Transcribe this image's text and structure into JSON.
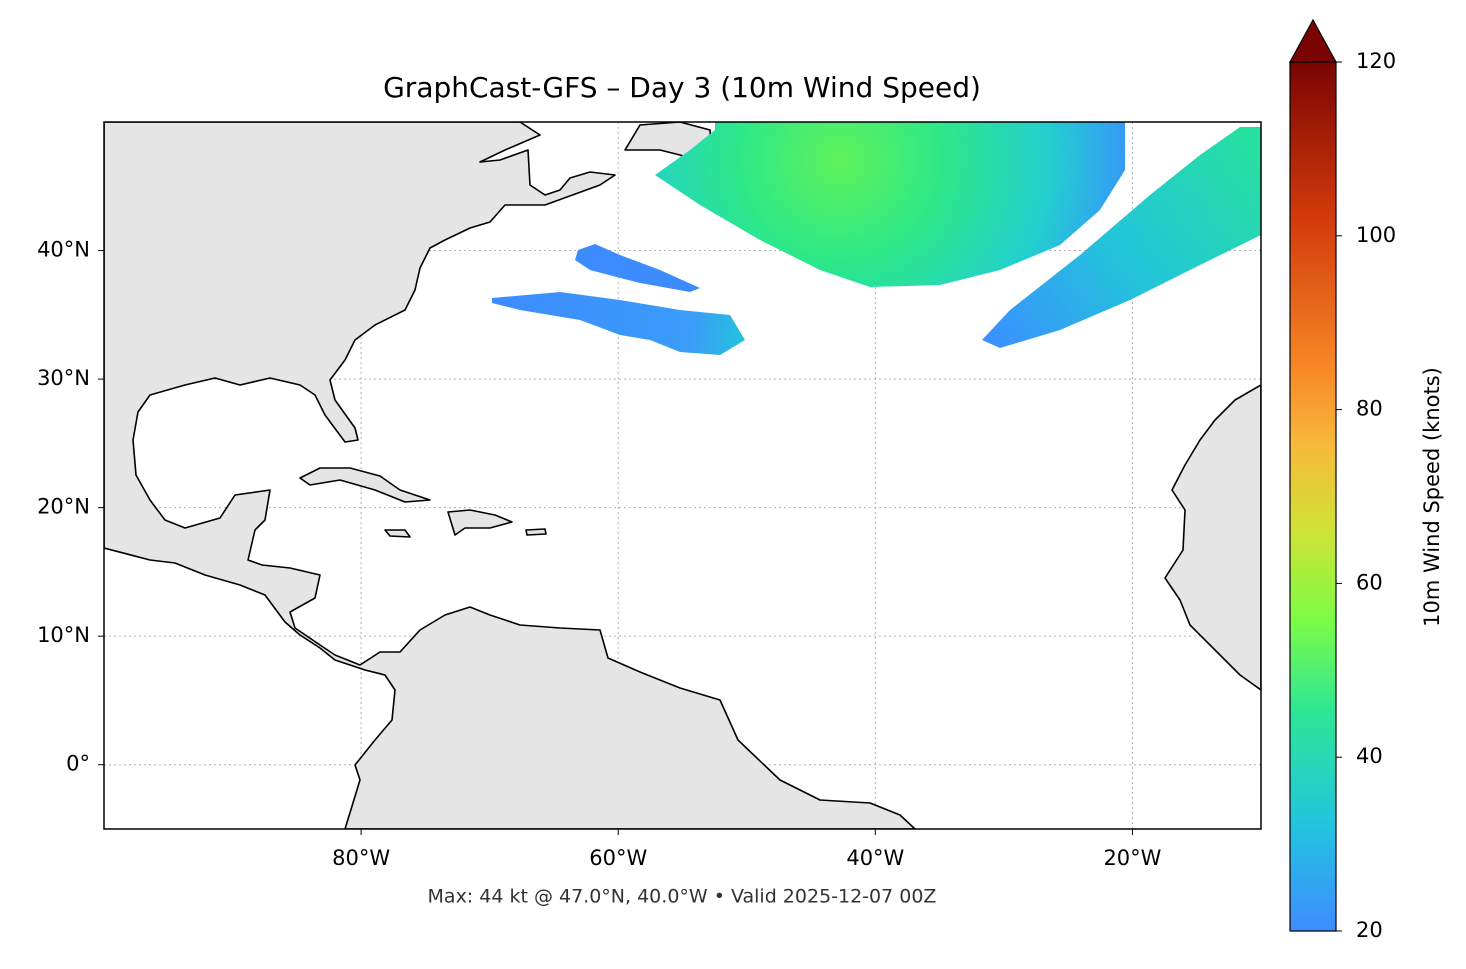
{
  "chart_data": {
    "type": "map",
    "title": "GraphCast-GFS – Day 3 (10m Wind Speed)",
    "footer": "Max: 44 kt @ 47.0°N, 40.0°W • Valid 2025-12-07 00Z",
    "xlim": [
      -100,
      -10
    ],
    "xticks": [
      {
        "value": -80,
        "label": "80°W"
      },
      {
        "value": -60,
        "label": "60°W"
      },
      {
        "value": -40,
        "label": "40°W"
      },
      {
        "value": -20,
        "label": "20°W"
      }
    ],
    "ylim": [
      -5,
      50
    ],
    "yticks": [
      {
        "value": 0,
        "label": "0°"
      },
      {
        "value": 10,
        "label": "10°N"
      },
      {
        "value": 20,
        "label": "20°N"
      },
      {
        "value": 30,
        "label": "30°N"
      },
      {
        "value": 40,
        "label": "40°N"
      }
    ],
    "grid": true,
    "colorbar": {
      "label": "10m Wind Speed (knots)",
      "lim": [
        20,
        120
      ],
      "ticks": [
        20,
        40,
        60,
        80,
        100,
        120
      ]
    }
  }
}
